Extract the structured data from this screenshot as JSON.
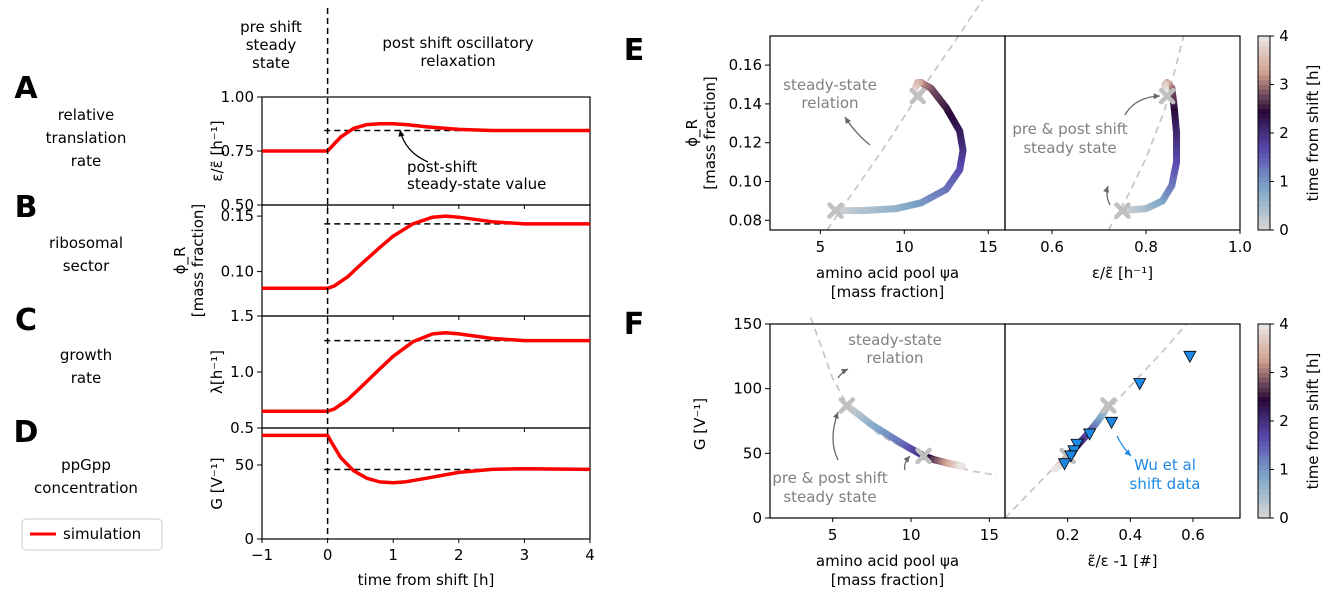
{
  "colors": {
    "simulation": "#ff0000",
    "steady_dashed": "#000000",
    "relation_dashed": "#c8c8c8",
    "marker": "#c0c0c0",
    "wu": "#1e88e5",
    "cmap": [
      "#d4d4d4",
      "#7fa8c8",
      "#5a4bb0",
      "#2a0a3a",
      "#d0a090",
      "#ececec"
    ]
  },
  "header": {
    "pre_shift": "pre shift\nsteady\nstate",
    "post_shift": "post shift oscillatory\nrelaxation"
  },
  "panels": {
    "A": "A",
    "B": "B",
    "C": "C",
    "D": "D",
    "E": "E",
    "F": "F"
  },
  "row_labels": {
    "A": "relative\ntranslation\nrate",
    "B": "ribosomal\nsector",
    "C": "growth\nrate",
    "D": "ppGpp\nconcentration"
  },
  "legend": {
    "simulation": "simulation"
  },
  "chart_data": [
    {
      "type": "line",
      "id": "A",
      "ylabel": "ε/ε̃ [h⁻¹]",
      "ylim": [
        0.5,
        1.0
      ],
      "yticks": [
        "0.50",
        "0.75",
        "1.00"
      ],
      "steady_value": 0.845,
      "annotation": "post-shift\nsteady-state value",
      "series": [
        {
          "name": "simulation",
          "x": [
            -1,
            0,
            0.2,
            0.4,
            0.6,
            0.8,
            1.0,
            1.2,
            1.5,
            2.0,
            2.5,
            3.0,
            4.0
          ],
          "y": [
            0.75,
            0.75,
            0.815,
            0.855,
            0.872,
            0.876,
            0.876,
            0.872,
            0.862,
            0.85,
            0.845,
            0.845,
            0.845
          ]
        }
      ]
    },
    {
      "type": "line",
      "id": "B",
      "ylabel": "ϕ_R\n[mass fraction]",
      "ylim": [
        0.06,
        0.16
      ],
      "yticks": [
        "0.10",
        "0.15"
      ],
      "steady_value": 0.143,
      "series": [
        {
          "name": "simulation",
          "x": [
            -1,
            0,
            0.1,
            0.3,
            0.5,
            0.8,
            1.0,
            1.3,
            1.6,
            1.8,
            2.0,
            2.5,
            3.0,
            4.0
          ],
          "y": [
            0.085,
            0.085,
            0.087,
            0.095,
            0.106,
            0.122,
            0.132,
            0.143,
            0.149,
            0.15,
            0.149,
            0.145,
            0.143,
            0.143
          ]
        }
      ]
    },
    {
      "type": "line",
      "id": "C",
      "ylabel": "λ[h⁻¹]",
      "ylim": [
        0.5,
        1.5
      ],
      "yticks": [
        "0.5",
        "1.0",
        "1.5"
      ],
      "steady_value": 1.28,
      "series": [
        {
          "name": "simulation",
          "x": [
            -1,
            0,
            0.1,
            0.3,
            0.5,
            0.8,
            1.0,
            1.3,
            1.6,
            1.8,
            2.0,
            2.5,
            3.0,
            4.0
          ],
          "y": [
            0.65,
            0.65,
            0.67,
            0.75,
            0.86,
            1.03,
            1.14,
            1.27,
            1.34,
            1.35,
            1.34,
            1.3,
            1.28,
            1.28
          ]
        }
      ]
    },
    {
      "type": "line",
      "id": "D",
      "ylabel": "G [V⁻¹]",
      "ylim": [
        0,
        75
      ],
      "yticks": [
        "0",
        "50"
      ],
      "steady_value": 47,
      "xlabel": "time from shift [h]",
      "xticks": [
        -1,
        0,
        1,
        2,
        3,
        4
      ],
      "xtick_labels": [
        "−1",
        "0",
        "1",
        "2",
        "3",
        "4"
      ],
      "series": [
        {
          "name": "simulation",
          "x": [
            -1,
            0,
            0.05,
            0.2,
            0.4,
            0.6,
            0.8,
            1.0,
            1.2,
            1.5,
            2.0,
            2.5,
            3.0,
            4.0
          ],
          "y": [
            70,
            70,
            66,
            55,
            46,
            41,
            38.5,
            38,
            38.7,
            41,
            45,
            47,
            47.5,
            47
          ]
        }
      ]
    },
    {
      "type": "scatter",
      "id": "E-left",
      "xlabel": "amino acid pool ψa\n[mass fraction]",
      "ylabel": "ϕ_R\n[mass fraction]",
      "xlim": [
        2,
        16
      ],
      "ylim": [
        0.075,
        0.175
      ],
      "xticks": [
        "5",
        "10",
        "15"
      ],
      "yticks": [
        "0.08",
        "0.10",
        "0.12",
        "0.14",
        "0.16"
      ],
      "annotation": "steady-state\nrelation",
      "trajectory": {
        "x": [
          5.9,
          7.5,
          9.5,
          11.0,
          12.5,
          13.3,
          13.5,
          13.3,
          12.5,
          11.6,
          11.0,
          10.8,
          10.6,
          10.9
        ],
        "y": [
          0.085,
          0.085,
          0.086,
          0.089,
          0.096,
          0.106,
          0.116,
          0.126,
          0.138,
          0.148,
          0.151,
          0.151,
          0.147,
          0.144
        ]
      },
      "points": {
        "x": [
          5.9,
          10.8
        ],
        "y": [
          0.085,
          0.144
        ]
      }
    },
    {
      "type": "scatter",
      "id": "E-right",
      "xlabel": "ε/ε̃ [h⁻¹]",
      "xlim": [
        0.5,
        1.0
      ],
      "xticks": [
        "0.6",
        "0.8",
        "1.0"
      ],
      "annotation": "pre & post shift\nsteady state",
      "trajectory": {
        "x": [
          0.75,
          0.8,
          0.835,
          0.855,
          0.865,
          0.865,
          0.86,
          0.855,
          0.845,
          0.84,
          0.845
        ],
        "y": [
          0.085,
          0.086,
          0.09,
          0.098,
          0.11,
          0.125,
          0.138,
          0.148,
          0.151,
          0.15,
          0.144
        ]
      },
      "points": {
        "x": [
          0.75,
          0.845
        ],
        "y": [
          0.085,
          0.144
        ]
      }
    },
    {
      "type": "scatter",
      "id": "F-left",
      "xlabel": "amino acid pool ψa\n[mass fraction]",
      "ylabel": "G [V⁻¹]",
      "xlim": [
        1,
        16
      ],
      "ylim": [
        0,
        150
      ],
      "xticks": [
        "5",
        "10",
        "15"
      ],
      "yticks": [
        "0",
        "50",
        "100",
        "150"
      ],
      "annotation": "steady-state\nrelation",
      "annotation2": "pre & post shift\nsteady state",
      "trajectory": {
        "x": [
          5.9,
          7.5,
          9.5,
          10.8,
          11.5,
          12.5,
          13.3
        ],
        "y": [
          87,
          72,
          57,
          48,
          45,
          42,
          40
        ]
      },
      "points": {
        "x": [
          5.9,
          10.8
        ],
        "y": [
          87,
          48
        ]
      }
    },
    {
      "type": "scatter",
      "id": "F-right",
      "xlabel": "ε̃/ε -1 [#]",
      "xlim": [
        0,
        0.75
      ],
      "xticks": [
        "0.2",
        "0.4",
        "0.6"
      ],
      "annotation": "Wu et al\nshift data",
      "trajectory": {
        "x": [
          0.33,
          0.3,
          0.26,
          0.22,
          0.19,
          0.16
        ],
        "y": [
          87,
          76,
          64,
          53,
          45,
          38
        ]
      },
      "points": {
        "x": [
          0.33,
          0.2
        ],
        "y": [
          87,
          48
        ]
      },
      "wu_data": {
        "x": [
          0.59,
          0.43,
          0.34,
          0.27,
          0.23,
          0.22,
          0.21,
          0.19
        ],
        "y": [
          125,
          104,
          74,
          65,
          57,
          52,
          48,
          42
        ]
      }
    }
  ],
  "colorbars": [
    {
      "label": "time from shift [h]",
      "ticks": [
        "0",
        "1",
        "2",
        "3",
        "4"
      ]
    },
    {
      "label": "time from shift [h]",
      "ticks": [
        "0",
        "1",
        "2",
        "3",
        "4"
      ]
    }
  ]
}
